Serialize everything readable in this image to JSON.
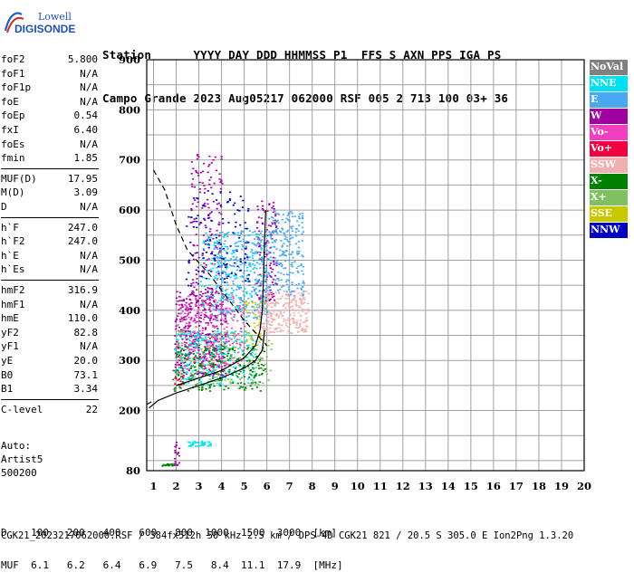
{
  "logo": {
    "line1": "Lowell",
    "line2": "DIGISONDE"
  },
  "header": {
    "labels": [
      "Station",
      "YYYY",
      "DAY",
      "DDD",
      "HHMMSS",
      "P1",
      "FFS",
      "S",
      "AXN",
      "PPS",
      "IGA",
      "PS"
    ],
    "values": [
      "Campo Grande",
      "2023",
      "Aug05",
      "217",
      "062000",
      "RSF",
      "005",
      "2",
      "713",
      "100",
      "03+",
      "36"
    ]
  },
  "params": {
    "group1": [
      {
        "name": "foF2",
        "value": "5.800"
      },
      {
        "name": "foF1",
        "value": "N/A"
      },
      {
        "name": "foF1p",
        "value": "N/A"
      },
      {
        "name": "foE",
        "value": "N/A"
      },
      {
        "name": "foEp",
        "value": "0.54"
      },
      {
        "name": "fxI",
        "value": "6.40"
      },
      {
        "name": "foEs",
        "value": "N/A"
      },
      {
        "name": "fmin",
        "value": "1.85"
      }
    ],
    "group2": [
      {
        "name": "MUF(D)",
        "value": "17.95"
      },
      {
        "name": "M(D)",
        "value": "3.09"
      },
      {
        "name": "D",
        "value": "N/A"
      }
    ],
    "group3": [
      {
        "name": "h`F",
        "value": "247.0"
      },
      {
        "name": "h`F2",
        "value": "247.0"
      },
      {
        "name": "h`E",
        "value": "N/A"
      },
      {
        "name": "h`Es",
        "value": "N/A"
      }
    ],
    "group4": [
      {
        "name": "hmF2",
        "value": "316.9"
      },
      {
        "name": "hmF1",
        "value": "N/A"
      },
      {
        "name": "hmE",
        "value": "110.0"
      },
      {
        "name": "yF2",
        "value": "82.8"
      },
      {
        "name": "yF1",
        "value": "N/A"
      },
      {
        "name": "yE",
        "value": "20.0"
      },
      {
        "name": "B0",
        "value": "73.1"
      },
      {
        "name": "B1",
        "value": "3.34"
      }
    ],
    "group5": [
      {
        "name": "C-level",
        "value": "22"
      }
    ]
  },
  "autoscaling": {
    "line1": "Auto:",
    "line2": "Artist5",
    "line3": "500200"
  },
  "legend": [
    {
      "label": "NoVal",
      "color": "#808080"
    },
    {
      "label": "NNE",
      "color": "#00e0f0"
    },
    {
      "label": "E",
      "color": "#4aa8f0"
    },
    {
      "label": "W",
      "color": "#a000a0"
    },
    {
      "label": "Vo-",
      "color": "#f040c0"
    },
    {
      "label": "Vo+",
      "color": "#f00040"
    },
    {
      "label": "SSW",
      "color": "#f0b0b0"
    },
    {
      "label": "X-",
      "color": "#008000"
    },
    {
      "label": "X+",
      "color": "#80c060"
    },
    {
      "label": "SSE",
      "color": "#c8c800"
    },
    {
      "label": "NNW",
      "color": "#0000c0"
    }
  ],
  "dmuf": {
    "d_label": "D",
    "d_values": [
      "100",
      "200",
      "400",
      "600",
      "800",
      "1000",
      "1500",
      "3000"
    ],
    "d_unit": "[km]",
    "muf_label": "MUF",
    "muf_values": [
      "6.1",
      "6.2",
      "6.4",
      "6.9",
      "7.5",
      "8.4",
      "11.1",
      "17.9"
    ],
    "muf_unit": "[MHz]"
  },
  "footer": "CGK21_2023217062000.RSF / 384fx512h 50 kHz 2.5 km / DPS-4D CGK21 821 / 20.5 S 305.0 E Ion2Png 1.3.20",
  "chart_data": {
    "type": "scatter",
    "title": "",
    "xlabel": "",
    "ylabel": "",
    "xlim": [
      0.5,
      20
    ],
    "ylim": [
      80,
      900
    ],
    "x_ticks": [
      "1",
      "2",
      "3",
      "4",
      "5",
      "6",
      "7",
      "8",
      "9",
      "10",
      "11",
      "12",
      "13",
      "14",
      "15",
      "16",
      "17",
      "18",
      "19",
      "20"
    ],
    "y_ticks": [
      "80",
      "200",
      "300",
      "400",
      "500",
      "600",
      "700",
      "800",
      "900"
    ],
    "y_tick_values": [
      80,
      200,
      300,
      400,
      500,
      600,
      700,
      800,
      900
    ],
    "grid": true,
    "echo_clusters": [
      {
        "name": "W",
        "x_range": [
          1.9,
          4.2
        ],
        "y_range": [
          270,
          440
        ],
        "n": 420,
        "color": "#a000a0"
      },
      {
        "name": "W",
        "x_range": [
          2.6,
          4.0
        ],
        "y_range": [
          420,
          720
        ],
        "n": 160,
        "color": "#a000a0"
      },
      {
        "name": "W",
        "x_range": [
          5.5,
          6.4
        ],
        "y_range": [
          420,
          620
        ],
        "n": 120,
        "color": "#a000a0"
      },
      {
        "name": "Vo-",
        "x_range": [
          2.0,
          5.0
        ],
        "y_range": [
          290,
          430
        ],
        "n": 260,
        "color": "#f040c0"
      },
      {
        "name": "E",
        "x_range": [
          3.6,
          6.0
        ],
        "y_range": [
          380,
          560
        ],
        "n": 320,
        "color": "#4aa8f0"
      },
      {
        "name": "E",
        "x_range": [
          6.0,
          7.6
        ],
        "y_range": [
          430,
          600
        ],
        "n": 220,
        "color": "#4aa8f0"
      },
      {
        "name": "NNE",
        "x_range": [
          1.9,
          5.5
        ],
        "y_range": [
          250,
          360
        ],
        "n": 260,
        "color": "#00e0f0"
      },
      {
        "name": "NNE",
        "x_range": [
          3.0,
          6.0
        ],
        "y_range": [
          400,
          560
        ],
        "n": 160,
        "color": "#00e0f0"
      },
      {
        "name": "NNE",
        "x_range": [
          2.5,
          3.5
        ],
        "y_range": [
          130,
          140
        ],
        "n": 40,
        "color": "#00e0f0"
      },
      {
        "name": "SSW",
        "x_range": [
          5.6,
          7.8
        ],
        "y_range": [
          355,
          440
        ],
        "n": 260,
        "color": "#f0b0b0"
      },
      {
        "name": "X-",
        "x_range": [
          1.8,
          5.9
        ],
        "y_range": [
          240,
          330
        ],
        "n": 220,
        "color": "#008000"
      },
      {
        "name": "X+",
        "x_range": [
          2.0,
          6.2
        ],
        "y_range": [
          250,
          360
        ],
        "n": 160,
        "color": "#80c060"
      },
      {
        "name": "NNW",
        "x_range": [
          2.4,
          5.2
        ],
        "y_range": [
          450,
          640
        ],
        "n": 120,
        "color": "#0000c0"
      },
      {
        "name": "Vo+",
        "x_range": [
          1.9,
          2.3
        ],
        "y_range": [
          250,
          270
        ],
        "n": 12,
        "color": "#f00040"
      },
      {
        "name": "SSE",
        "x_range": [
          5.0,
          6.2
        ],
        "y_range": [
          330,
          420
        ],
        "n": 40,
        "color": "#c8c800"
      },
      {
        "name": "W",
        "x_range": [
          1.9,
          2.1
        ],
        "y_range": [
          90,
          140
        ],
        "n": 20,
        "color": "#a000a0"
      },
      {
        "name": "X-",
        "x_range": [
          1.3,
          1.9
        ],
        "y_range": [
          90,
          95
        ],
        "n": 20,
        "color": "#008000"
      }
    ],
    "trace_oblique": {
      "name": "dashed MUF curve",
      "x": [
        1.0,
        1.5,
        2.0,
        2.5,
        3.0,
        3.5,
        4.0,
        4.5,
        5.0,
        5.5,
        6.0
      ],
      "y": [
        680,
        640,
        570,
        520,
        495,
        470,
        440,
        410,
        380,
        355,
        330
      ]
    },
    "trace_profile": {
      "name": "electron density profile",
      "x": [
        0.8,
        1.2,
        2.0,
        3.0,
        4.0,
        5.0,
        5.5,
        5.8,
        5.85,
        5.9
      ],
      "y": [
        205,
        220,
        235,
        250,
        265,
        285,
        300,
        320,
        340,
        360
      ]
    },
    "trace_virtual_height": {
      "name": "O-trace",
      "x": [
        2.0,
        3.0,
        4.0,
        5.0,
        5.5,
        5.7,
        5.8,
        5.85,
        5.9,
        5.95
      ],
      "y": [
        250,
        265,
        280,
        305,
        330,
        360,
        400,
        460,
        540,
        600
      ]
    }
  }
}
